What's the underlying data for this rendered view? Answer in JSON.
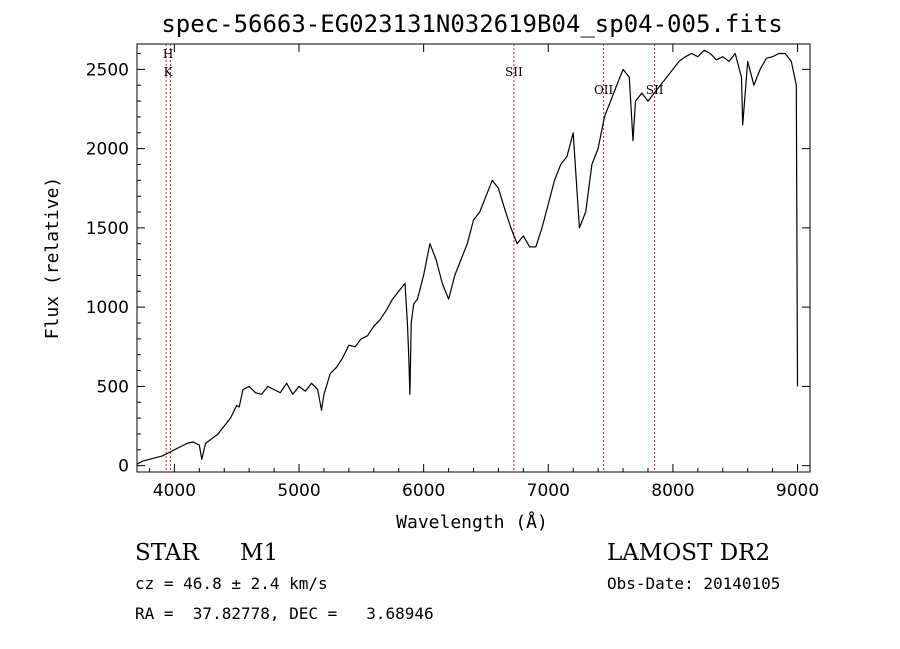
{
  "chart_data": {
    "type": "line",
    "title": "spec-56663-EG023131N032619B04_sp04-005.fits",
    "xlabel": "Wavelength (Å)",
    "ylabel": "Flux (relative)",
    "xlim": [
      3700,
      9100
    ],
    "ylim": [
      -40,
      2660
    ],
    "x_ticks": [
      "4000",
      "5000",
      "6000",
      "7000",
      "8000",
      "9000"
    ],
    "x_tick_values": [
      4000,
      5000,
      6000,
      7000,
      8000,
      9000
    ],
    "y_ticks": [
      "0",
      "500",
      "1000",
      "1500",
      "2000",
      "2500"
    ],
    "y_tick_values": [
      0,
      500,
      1000,
      1500,
      2000,
      2500
    ],
    "grid": false,
    "series": [
      {
        "x": [
          3700,
          3750,
          3800,
          3850,
          3900,
          3950,
          4000,
          4050,
          4100,
          4150,
          4200,
          4220,
          4250,
          4300,
          4350,
          4400,
          4450,
          4500,
          4520,
          4550,
          4600,
          4650,
          4700,
          4750,
          4800,
          4850,
          4900,
          4950,
          5000,
          5050,
          5100,
          5150,
          5180,
          5200,
          5220,
          5250,
          5300,
          5350,
          5400,
          5450,
          5500,
          5550,
          5600,
          5650,
          5700,
          5750,
          5800,
          5850,
          5870,
          5880,
          5890,
          5900,
          5920,
          5950,
          6000,
          6050,
          6100,
          6150,
          6200,
          6250,
          6300,
          6350,
          6400,
          6450,
          6500,
          6550,
          6600,
          6650,
          6700,
          6750,
          6800,
          6850,
          6900,
          6950,
          7000,
          7050,
          7100,
          7150,
          7200,
          7250,
          7300,
          7350,
          7400,
          7450,
          7500,
          7550,
          7600,
          7650,
          7680,
          7700,
          7750,
          7800,
          7850,
          7900,
          7950,
          8000,
          8050,
          8100,
          8150,
          8200,
          8250,
          8300,
          8350,
          8400,
          8450,
          8500,
          8550,
          8560,
          8600,
          8650,
          8700,
          8750,
          8800,
          8850,
          8900,
          8950,
          8990,
          9000
        ],
        "y": [
          10,
          30,
          40,
          50,
          60,
          80,
          100,
          120,
          140,
          150,
          130,
          40,
          140,
          170,
          200,
          250,
          300,
          380,
          370,
          480,
          500,
          460,
          450,
          500,
          480,
          460,
          520,
          450,
          500,
          470,
          520,
          480,
          350,
          450,
          500,
          580,
          620,
          680,
          760,
          750,
          800,
          820,
          880,
          920,
          980,
          1050,
          1100,
          1150,
          900,
          700,
          450,
          900,
          1020,
          1050,
          1200,
          1400,
          1300,
          1150,
          1050,
          1200,
          1300,
          1400,
          1550,
          1600,
          1700,
          1800,
          1750,
          1620,
          1500,
          1400,
          1450,
          1380,
          1380,
          1500,
          1650,
          1800,
          1900,
          1950,
          2100,
          1500,
          1600,
          1900,
          2000,
          2200,
          2300,
          2400,
          2500,
          2450,
          2050,
          2300,
          2350,
          2300,
          2350,
          2400,
          2450,
          2500,
          2550,
          2580,
          2600,
          2580,
          2620,
          2600,
          2560,
          2580,
          2550,
          2600,
          2450,
          2150,
          2550,
          2400,
          2500,
          2570,
          2580,
          2600,
          2600,
          2550,
          2400,
          500
        ]
      }
    ],
    "annotations": [
      {
        "label": "H",
        "x": 3968
      },
      {
        "label": "K",
        "x": 3934
      },
      {
        "label": "SII",
        "x": 6724
      },
      {
        "label": "OII",
        "x": 7444
      },
      {
        "label": "SII",
        "x": 7853
      }
    ],
    "annotation_line_color": "#a03030",
    "line_color": "#000000"
  },
  "info": {
    "object_class": "STAR",
    "subclass": "M1",
    "survey": "LAMOST DR2",
    "redshift_line": "cz = 46.8 ± 2.4 km/s",
    "obs_date_line": "Obs-Date: 20140105",
    "coords_line": "RA =  37.82778, DEC =   3.68946"
  }
}
